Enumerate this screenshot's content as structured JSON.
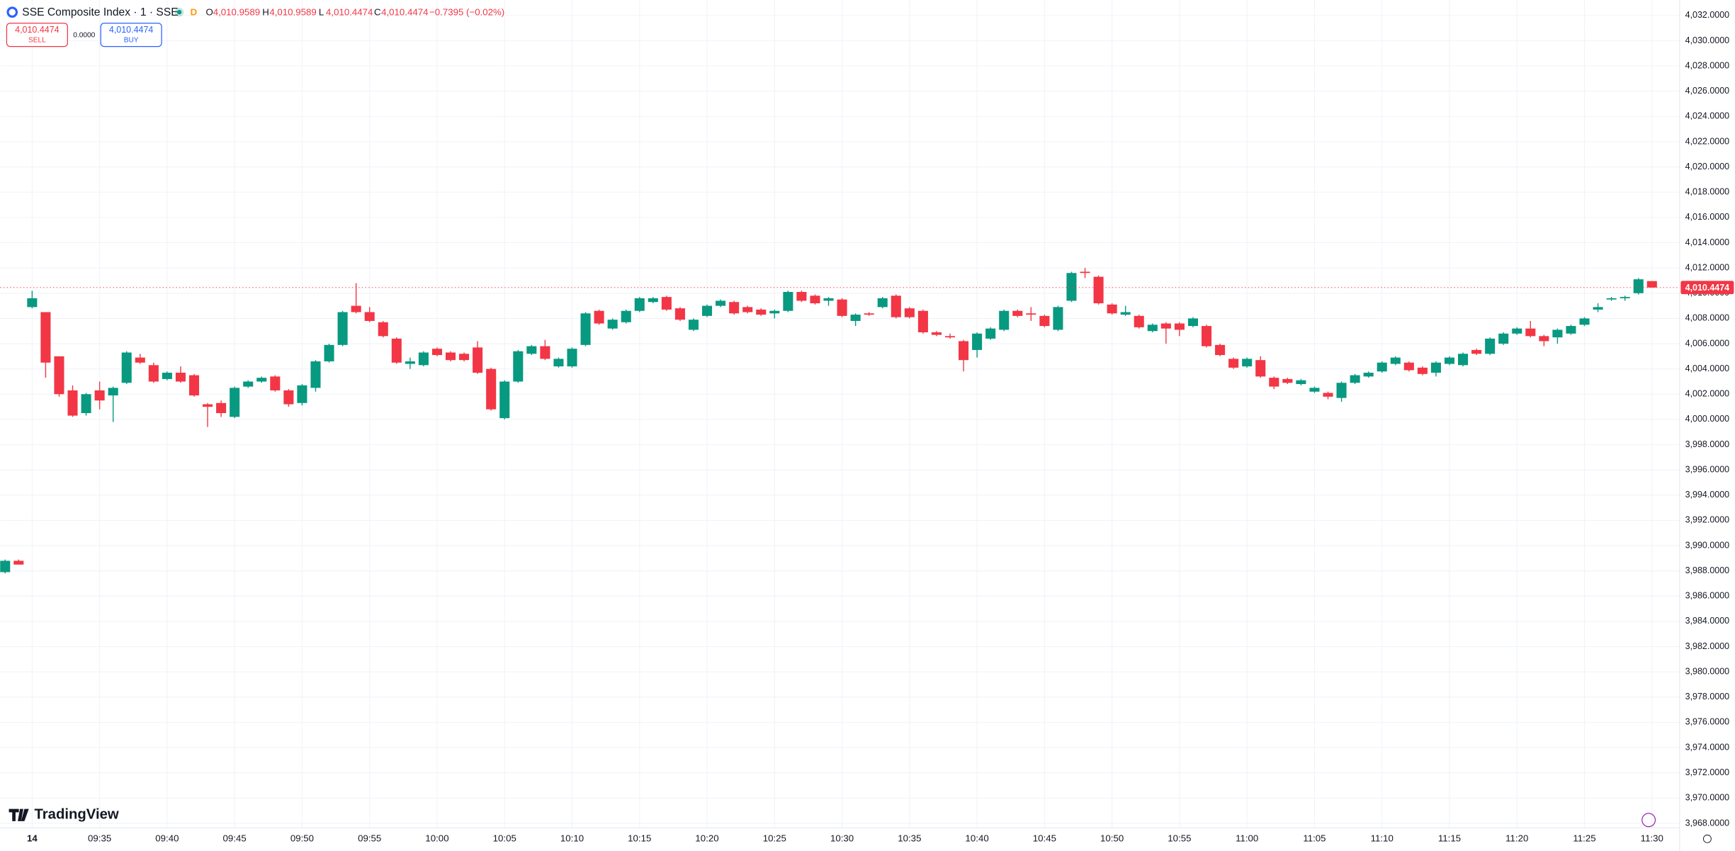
{
  "chart_data": {
    "type": "candlestick",
    "legend": {
      "symbol": "SSE Composite Index · 1 · SSE",
      "flag": "D",
      "ohlc_labels": [
        "O",
        "H",
        "L",
        "C"
      ],
      "ohlc_values": [
        "4,010.9589",
        "4,010.9589",
        "4,010.4474",
        "4,010.4474"
      ],
      "change": "−0.7395 (−0.02%)"
    },
    "trade_panel": {
      "sell_price": "4,010.4474",
      "sell": "SELL",
      "spread": "0.0000",
      "buy_price": "4,010.4474",
      "buy": "BUY"
    },
    "brand": "TradingView",
    "up_color": "#089981",
    "down_color": "#f23645",
    "grid": true,
    "last_price": {
      "value": 4010.4474,
      "label": "4,010.4474"
    },
    "ylim": [
      3967.5,
      4032.5
    ],
    "yticks": [
      {
        "value": 3968,
        "label": "3,968.0000"
      },
      {
        "value": 3970,
        "label": "3,970.0000"
      },
      {
        "value": 3972,
        "label": "3,972.0000"
      },
      {
        "value": 3974,
        "label": "3,974.0000"
      },
      {
        "value": 3976,
        "label": "3,976.0000"
      },
      {
        "value": 3978,
        "label": "3,978.0000"
      },
      {
        "value": 3980,
        "label": "3,980.0000"
      },
      {
        "value": 3982,
        "label": "3,982.0000"
      },
      {
        "value": 3984,
        "label": "3,984.0000"
      },
      {
        "value": 3986,
        "label": "3,986.0000"
      },
      {
        "value": 3988,
        "label": "3,988.0000"
      },
      {
        "value": 3990,
        "label": "3,990.0000"
      },
      {
        "value": 3992,
        "label": "3,992.0000"
      },
      {
        "value": 3994,
        "label": "3,994.0000"
      },
      {
        "value": 3996,
        "label": "3,996.0000"
      },
      {
        "value": 3998,
        "label": "3,998.0000"
      },
      {
        "value": 4000,
        "label": "4,000.0000"
      },
      {
        "value": 4002,
        "label": "4,002.0000"
      },
      {
        "value": 4004,
        "label": "4,004.0000"
      },
      {
        "value": 4006,
        "label": "4,006.0000"
      },
      {
        "value": 4008,
        "label": "4,008.0000"
      },
      {
        "value": 4010,
        "label": "4,010.0000"
      },
      {
        "value": 4012,
        "label": "4,012.0000"
      },
      {
        "value": 4014,
        "label": "4,014.0000"
      },
      {
        "value": 4016,
        "label": "4,016.0000"
      },
      {
        "value": 4018,
        "label": "4,018.0000"
      },
      {
        "value": 4020,
        "label": "4,020.0000"
      },
      {
        "value": 4022,
        "label": "4,022.0000"
      },
      {
        "value": 4024,
        "label": "4,024.0000"
      },
      {
        "value": 4026,
        "label": "4,026.0000"
      },
      {
        "value": 4028,
        "label": "4,028.0000"
      },
      {
        "value": 4030,
        "label": "4,030.0000"
      },
      {
        "value": 4032,
        "label": "4,032.0000"
      }
    ],
    "categories": [
      null,
      null,
      "14",
      null,
      null,
      null,
      null,
      "09:35",
      null,
      null,
      null,
      null,
      "09:40",
      null,
      null,
      null,
      null,
      "09:45",
      null,
      null,
      null,
      null,
      "09:50",
      null,
      null,
      null,
      null,
      "09:55",
      null,
      null,
      null,
      null,
      "10:00",
      null,
      null,
      null,
      null,
      "10:05",
      null,
      null,
      null,
      null,
      "10:10",
      null,
      null,
      null,
      null,
      "10:15",
      null,
      null,
      null,
      null,
      "10:20",
      null,
      null,
      null,
      null,
      "10:25",
      null,
      null,
      null,
      null,
      "10:30",
      null,
      null,
      null,
      null,
      "10:35",
      null,
      null,
      null,
      null,
      "10:40",
      null,
      null,
      null,
      null,
      "10:45",
      null,
      null,
      null,
      null,
      "10:50",
      null,
      null,
      null,
      null,
      "10:55",
      null,
      null,
      null,
      null,
      "11:00",
      null,
      null,
      null,
      null,
      "11:05",
      null,
      null,
      null,
      null,
      "11:10",
      null,
      null,
      null,
      null,
      "11:15",
      null,
      null,
      null,
      null,
      "11:20",
      null,
      null,
      null,
      null,
      "11:25",
      null,
      null,
      null,
      null,
      "11:30"
    ],
    "ohlc": [
      [
        3987.9,
        3988.9,
        3987.8,
        3988.8
      ],
      [
        3988.8,
        3988.9,
        3988.5,
        3988.5
      ],
      [
        4008.9,
        4010.2,
        4008.8,
        4009.6
      ],
      [
        4008.5,
        4008.5,
        4003.3,
        4004.5
      ],
      [
        4005.0,
        4005.0,
        4001.8,
        4002.0
      ],
      [
        4002.3,
        4002.7,
        4000.2,
        4000.3
      ],
      [
        4000.5,
        4002.1,
        4000.3,
        4002.0
      ],
      [
        4002.3,
        4003.0,
        4000.8,
        4001.5
      ],
      [
        4001.9,
        4002.6,
        3999.8,
        4002.5
      ],
      [
        4002.9,
        4005.4,
        4002.8,
        4005.3
      ],
      [
        4004.9,
        4005.2,
        4004.4,
        4004.5
      ],
      [
        4004.3,
        4004.5,
        4002.9,
        4003.0
      ],
      [
        4003.2,
        4003.8,
        4003.1,
        4003.7
      ],
      [
        4003.7,
        4004.2,
        4002.9,
        4003.0
      ],
      [
        4003.5,
        4003.6,
        4001.8,
        4001.9
      ],
      [
        4001.2,
        4001.3,
        3999.4,
        4001.0
      ],
      [
        4001.3,
        4001.5,
        4000.2,
        4000.5
      ],
      [
        4000.2,
        4002.6,
        4000.1,
        4002.5
      ],
      [
        4002.6,
        4003.1,
        4002.5,
        4003.0
      ],
      [
        4003.0,
        4003.4,
        4002.9,
        4003.3
      ],
      [
        4003.4,
        4003.5,
        4002.2,
        4002.3
      ],
      [
        4002.3,
        4002.4,
        4001.0,
        4001.2
      ],
      [
        4001.3,
        4002.8,
        4001.1,
        4002.7
      ],
      [
        4002.5,
        4004.7,
        4002.2,
        4004.6
      ],
      [
        4004.6,
        4006.0,
        4004.5,
        4005.9
      ],
      [
        4005.9,
        4008.6,
        4005.8,
        4008.5
      ],
      [
        4009.0,
        4010.8,
        4008.4,
        4008.5
      ],
      [
        4008.5,
        4008.9,
        4007.7,
        4007.8
      ],
      [
        4007.7,
        4007.8,
        4006.5,
        4006.6
      ],
      [
        4006.4,
        4006.5,
        4004.4,
        4004.5
      ],
      [
        4004.4,
        4004.9,
        4004.0,
        4004.6
      ],
      [
        4004.3,
        4005.4,
        4004.2,
        4005.3
      ],
      [
        4005.6,
        4005.7,
        4005.0,
        4005.1
      ],
      [
        4005.3,
        4005.4,
        4004.6,
        4004.7
      ],
      [
        4005.2,
        4005.3,
        4004.6,
        4004.7
      ],
      [
        4005.7,
        4006.2,
        4003.6,
        4003.7
      ],
      [
        4004.0,
        4004.1,
        4000.7,
        4000.8
      ],
      [
        4000.1,
        4003.1,
        4000.0,
        4003.0
      ],
      [
        4003.0,
        4005.5,
        4002.9,
        4005.4
      ],
      [
        4005.2,
        4005.9,
        4005.1,
        4005.8
      ],
      [
        4005.8,
        4006.3,
        4004.7,
        4004.8
      ],
      [
        4004.2,
        4004.9,
        4004.1,
        4004.8
      ],
      [
        4004.2,
        4005.7,
        4004.1,
        4005.6
      ],
      [
        4005.9,
        4008.5,
        4005.8,
        4008.4
      ],
      [
        4008.6,
        4008.7,
        4007.5,
        4007.6
      ],
      [
        4007.2,
        4008.0,
        4007.1,
        4007.9
      ],
      [
        4007.7,
        4008.7,
        4007.6,
        4008.6
      ],
      [
        4008.6,
        4009.7,
        4008.5,
        4009.6
      ],
      [
        4009.3,
        4009.7,
        4009.2,
        4009.6
      ],
      [
        4009.7,
        4009.8,
        4008.6,
        4008.7
      ],
      [
        4008.8,
        4008.9,
        4007.8,
        4007.9
      ],
      [
        4007.1,
        4008.0,
        4007.0,
        4007.9
      ],
      [
        4008.2,
        4009.1,
        4008.1,
        4009.0
      ],
      [
        4009.0,
        4009.5,
        4008.9,
        4009.4
      ],
      [
        4009.3,
        4009.4,
        4008.3,
        4008.4
      ],
      [
        4008.9,
        4009.0,
        4008.4,
        4008.5
      ],
      [
        4008.7,
        4008.8,
        4008.2,
        4008.3
      ],
      [
        4008.4,
        4008.7,
        4008.0,
        4008.6
      ],
      [
        4008.6,
        4010.2,
        4008.5,
        4010.1
      ],
      [
        4010.1,
        4010.2,
        4009.3,
        4009.4
      ],
      [
        4009.8,
        4009.9,
        4009.1,
        4009.2
      ],
      [
        4009.4,
        4009.7,
        4009.0,
        4009.6
      ],
      [
        4009.5,
        4009.6,
        4008.1,
        4008.2
      ],
      [
        4007.8,
        4008.4,
        4007.4,
        4008.3
      ],
      [
        4008.4,
        4008.5,
        4008.2,
        4008.3
      ],
      [
        4008.9,
        4009.7,
        4008.8,
        4009.6
      ],
      [
        4009.8,
        4009.9,
        4008.0,
        4008.1
      ],
      [
        4008.8,
        4008.9,
        4008.0,
        4008.1
      ],
      [
        4008.6,
        4008.7,
        4006.8,
        4006.9
      ],
      [
        4006.9,
        4007.0,
        4006.6,
        4006.7
      ],
      [
        4006.6,
        4006.8,
        4006.4,
        4006.5
      ],
      [
        4006.2,
        4006.3,
        4003.8,
        4004.7
      ],
      [
        4005.5,
        4006.9,
        4004.9,
        4006.8
      ],
      [
        4006.4,
        4007.3,
        4006.3,
        4007.2
      ],
      [
        4007.1,
        4008.7,
        4007.0,
        4008.6
      ],
      [
        4008.6,
        4008.7,
        4008.1,
        4008.2
      ],
      [
        4008.4,
        4008.9,
        4007.8,
        4008.3
      ],
      [
        4008.2,
        4008.3,
        4007.3,
        4007.4
      ],
      [
        4007.1,
        4009.0,
        4007.0,
        4008.9
      ],
      [
        4009.4,
        4011.7,
        4009.3,
        4011.6
      ],
      [
        4011.7,
        4012.0,
        4011.2,
        4011.6
      ],
      [
        4011.3,
        4011.4,
        4009.1,
        4009.2
      ],
      [
        4009.1,
        4009.2,
        4008.3,
        4008.4
      ],
      [
        4008.3,
        4009.0,
        4008.2,
        4008.5
      ],
      [
        4008.2,
        4008.3,
        4007.2,
        4007.3
      ],
      [
        4007.0,
        4007.6,
        4006.9,
        4007.5
      ],
      [
        4007.6,
        4007.7,
        4006.0,
        4007.2
      ],
      [
        4007.6,
        4007.7,
        4006.6,
        4007.1
      ],
      [
        4007.4,
        4008.1,
        4007.3,
        4008.0
      ],
      [
        4007.4,
        4007.5,
        4005.7,
        4005.8
      ],
      [
        4005.9,
        4006.0,
        4005.0,
        4005.1
      ],
      [
        4004.8,
        4004.9,
        4004.0,
        4004.1
      ],
      [
        4004.2,
        4004.9,
        4004.1,
        4004.8
      ],
      [
        4004.7,
        4005.0,
        4003.3,
        4003.4
      ],
      [
        4003.3,
        4003.4,
        4002.4,
        4002.6
      ],
      [
        4003.2,
        4003.3,
        4002.8,
        4002.9
      ],
      [
        4002.8,
        4003.2,
        4002.7,
        4003.1
      ],
      [
        4002.2,
        4002.6,
        4002.1,
        4002.5
      ],
      [
        4002.1,
        4002.2,
        4001.6,
        4001.8
      ],
      [
        4001.7,
        4003.0,
        4001.4,
        4002.9
      ],
      [
        4002.9,
        4003.6,
        4002.8,
        4003.5
      ],
      [
        4003.4,
        4003.8,
        4003.3,
        4003.7
      ],
      [
        4003.8,
        4004.6,
        4003.7,
        4004.5
      ],
      [
        4004.4,
        4005.0,
        4004.3,
        4004.9
      ],
      [
        4004.5,
        4004.6,
        4003.8,
        4003.9
      ],
      [
        4004.1,
        4004.2,
        4003.5,
        4003.6
      ],
      [
        4003.7,
        4004.6,
        4003.4,
        4004.5
      ],
      [
        4004.4,
        4005.0,
        4004.3,
        4004.9
      ],
      [
        4004.3,
        4005.3,
        4004.2,
        4005.2
      ],
      [
        4005.5,
        4005.6,
        4005.1,
        4005.2
      ],
      [
        4005.2,
        4006.5,
        4005.1,
        4006.4
      ],
      [
        4006.0,
        4006.9,
        4005.9,
        4006.8
      ],
      [
        4006.8,
        4007.3,
        4006.7,
        4007.2
      ],
      [
        4007.2,
        4007.8,
        4006.5,
        4006.6
      ],
      [
        4006.6,
        4006.7,
        4005.8,
        4006.2
      ],
      [
        4006.5,
        4007.2,
        4006.0,
        4007.1
      ],
      [
        4006.8,
        4007.5,
        4006.7,
        4007.4
      ],
      [
        4007.5,
        4008.1,
        4007.4,
        4008.0
      ],
      [
        4008.7,
        4009.2,
        4008.5,
        4008.9
      ],
      [
        4009.5,
        4009.7,
        4009.4,
        4009.6
      ],
      [
        4009.6,
        4009.8,
        4009.4,
        4009.7
      ],
      [
        4010.0,
        4011.2,
        4009.9,
        4011.1
      ],
      [
        4010.9589,
        4010.9589,
        4010.4474,
        4010.4474
      ]
    ]
  }
}
